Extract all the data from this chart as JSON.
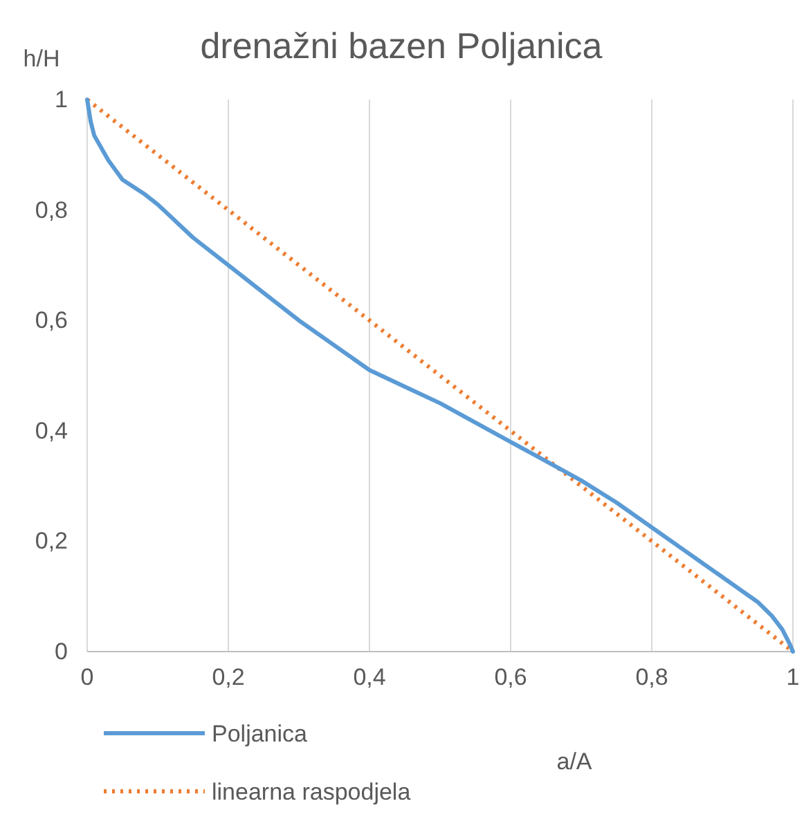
{
  "chart_data": {
    "type": "line",
    "title": "drenažni bazen Poljanica",
    "xlabel": "a/A",
    "ylabel": "h/H",
    "xlim": [
      0,
      1
    ],
    "ylim": [
      0,
      1
    ],
    "xticks": [
      {
        "value": 0,
        "label": "0"
      },
      {
        "value": 0.2,
        "label": "0,2"
      },
      {
        "value": 0.4,
        "label": "0,4"
      },
      {
        "value": 0.6,
        "label": "0,6"
      },
      {
        "value": 0.8,
        "label": "0,8"
      },
      {
        "value": 1,
        "label": "1"
      }
    ],
    "yticks": [
      {
        "value": 0,
        "label": "0"
      },
      {
        "value": 0.2,
        "label": "0,2"
      },
      {
        "value": 0.4,
        "label": "0,4"
      },
      {
        "value": 0.6,
        "label": "0,6"
      },
      {
        "value": 0.8,
        "label": "0,8"
      },
      {
        "value": 1,
        "label": "1"
      }
    ],
    "grid": "x",
    "legend": "bottom left",
    "series": [
      {
        "name": "Poljanica",
        "color": "#5b9bd5",
        "line_style": "solid",
        "x": [
          0,
          0.005,
          0.01,
          0.03,
          0.05,
          0.08,
          0.1,
          0.15,
          0.2,
          0.25,
          0.3,
          0.35,
          0.4,
          0.45,
          0.5,
          0.55,
          0.6,
          0.65,
          0.7,
          0.75,
          0.8,
          0.85,
          0.9,
          0.95,
          0.97,
          0.985,
          0.995,
          1
        ],
        "values": [
          1,
          0.96,
          0.935,
          0.89,
          0.855,
          0.83,
          0.81,
          0.75,
          0.7,
          0.65,
          0.6,
          0.555,
          0.51,
          0.48,
          0.45,
          0.415,
          0.38,
          0.345,
          0.31,
          0.27,
          0.225,
          0.18,
          0.135,
          0.09,
          0.065,
          0.04,
          0.015,
          0
        ]
      },
      {
        "name": "linearna raspodjela",
        "color": "#ed7d31",
        "line_style": "dotted",
        "x": [
          0,
          1
        ],
        "values": [
          1,
          0
        ]
      }
    ]
  }
}
